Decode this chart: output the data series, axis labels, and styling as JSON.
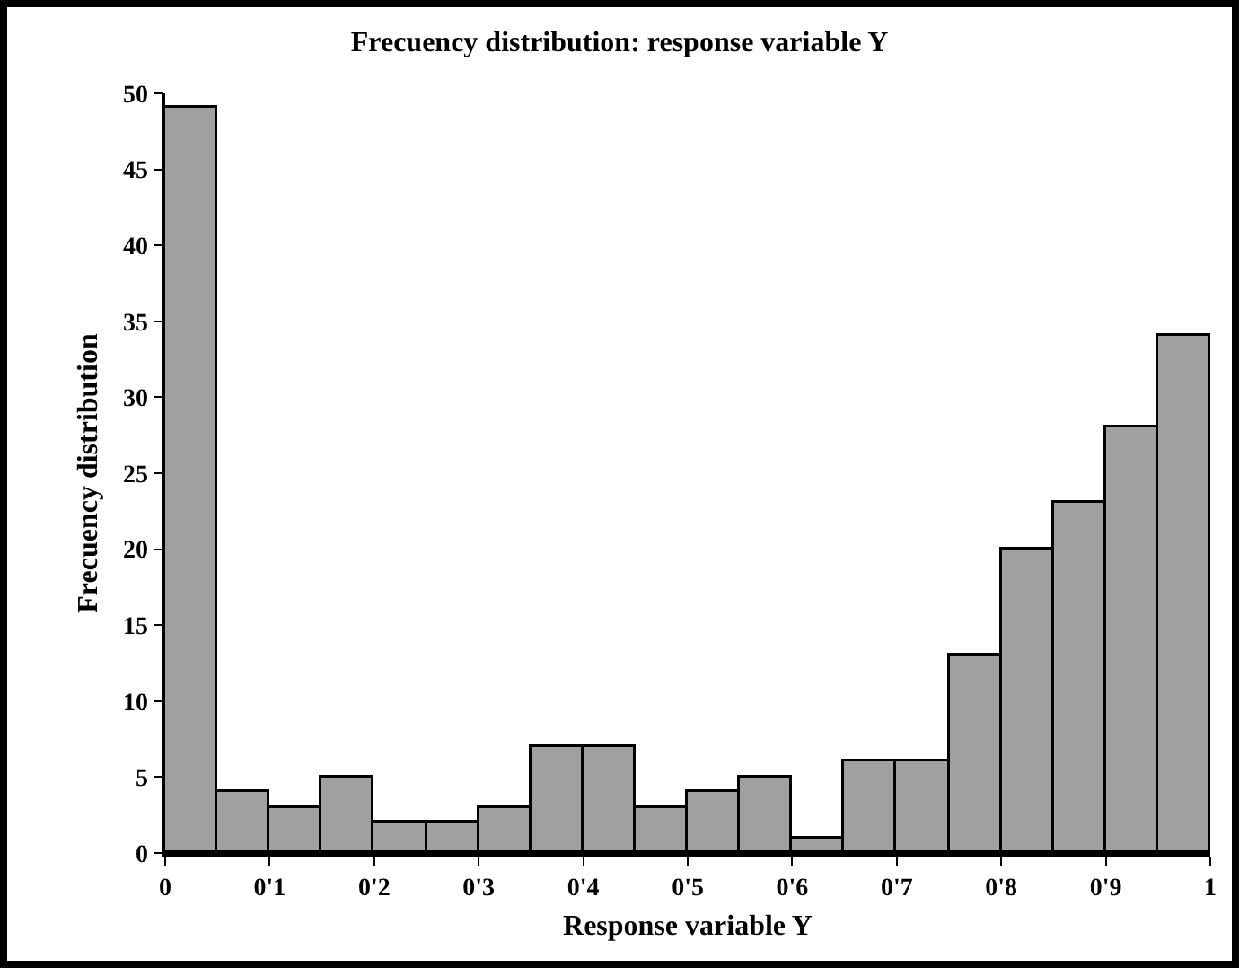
{
  "chart_data": {
    "type": "histogram",
    "title": "Frecuency distribution: response variable Y",
    "xlabel": "Response variable Y",
    "ylabel": "Frecuency distribution",
    "bins": [
      0,
      0.05,
      0.1,
      0.15,
      0.2,
      0.25,
      0.3,
      0.35,
      0.4,
      0.45,
      0.5,
      0.55,
      0.6,
      0.65,
      0.7,
      0.75,
      0.8,
      0.85,
      0.9,
      0.95,
      1
    ],
    "values": [
      49,
      4,
      3,
      5,
      2,
      2,
      3,
      7,
      7,
      3,
      4,
      5,
      1,
      6,
      6,
      13,
      20,
      23,
      28,
      34
    ],
    "color": "#a0a0a0",
    "xlim": [
      0,
      1
    ],
    "xticks": [
      0,
      {
        "value": 0.1,
        "label": "0'1"
      },
      {
        "value": 0.2,
        "label": "0'2"
      },
      {
        "value": 0.3,
        "label": "0'3"
      },
      {
        "value": 0.4,
        "label": "0'4"
      },
      {
        "value": 0.5,
        "label": "0'5"
      },
      {
        "value": 0.6,
        "label": "0'6"
      },
      {
        "value": 0.7,
        "label": "0'7"
      },
      {
        "value": 0.8,
        "label": "0'8"
      },
      {
        "value": 0.9,
        "label": "0'9"
      },
      1
    ],
    "ylim": [
      0,
      50
    ],
    "yticks": [
      0,
      5,
      10,
      15,
      20,
      25,
      30,
      35,
      40,
      45,
      50
    ],
    "grid": false
  }
}
